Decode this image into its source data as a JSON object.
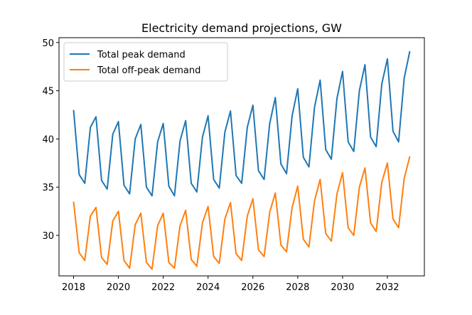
{
  "chart_data": {
    "type": "line",
    "title": "Electricity demand projections, GW",
    "xlabel": "",
    "ylabel": "",
    "xlim": [
      2017.35,
      2033.65
    ],
    "ylim": [
      25.8,
      50.5
    ],
    "xticks": [
      2018,
      2020,
      2022,
      2024,
      2026,
      2028,
      2030,
      2032
    ],
    "yticks": [
      30,
      35,
      40,
      45,
      50
    ],
    "legend_position": "upper-left",
    "x": [
      2018.0,
      2018.25,
      2018.5,
      2018.75,
      2019.0,
      2019.25,
      2019.5,
      2019.75,
      2020.0,
      2020.25,
      2020.5,
      2020.75,
      2021.0,
      2021.25,
      2021.5,
      2021.75,
      2022.0,
      2022.25,
      2022.5,
      2022.75,
      2023.0,
      2023.25,
      2023.5,
      2023.75,
      2024.0,
      2024.25,
      2024.5,
      2024.75,
      2025.0,
      2025.25,
      2025.5,
      2025.75,
      2026.0,
      2026.25,
      2026.5,
      2026.75,
      2027.0,
      2027.25,
      2027.5,
      2027.75,
      2028.0,
      2028.25,
      2028.5,
      2028.75,
      2029.0,
      2029.25,
      2029.5,
      2029.75,
      2030.0,
      2030.25,
      2030.5,
      2030.75,
      2031.0,
      2031.25,
      2031.5,
      2031.75,
      2032.0,
      2032.25,
      2032.5,
      2032.75,
      2033.0
    ],
    "series": [
      {
        "name": "Total peak demand",
        "color": "#1f77b4",
        "values": [
          43.0,
          36.3,
          35.4,
          41.2,
          42.3,
          35.7,
          34.8,
          40.5,
          41.8,
          35.2,
          34.3,
          40.0,
          41.5,
          35.0,
          34.1,
          39.7,
          41.6,
          35.1,
          34.1,
          39.8,
          41.9,
          35.4,
          34.5,
          40.2,
          42.4,
          35.8,
          34.9,
          40.7,
          42.9,
          36.2,
          35.4,
          41.2,
          43.5,
          36.7,
          35.8,
          41.6,
          44.3,
          37.4,
          36.4,
          42.4,
          45.2,
          38.1,
          37.1,
          43.3,
          46.1,
          38.9,
          37.9,
          44.2,
          47.0,
          39.7,
          38.7,
          45.0,
          47.7,
          40.2,
          39.2,
          45.7,
          48.3,
          40.8,
          39.7,
          46.3,
          49.1
        ]
      },
      {
        "name": "Total off-peak demand",
        "color": "#ff7f0e",
        "values": [
          33.5,
          28.2,
          27.4,
          32.0,
          32.9,
          27.7,
          27.0,
          31.5,
          32.5,
          27.4,
          26.6,
          31.1,
          32.3,
          27.2,
          26.5,
          31.0,
          32.3,
          27.2,
          26.6,
          31.0,
          32.6,
          27.5,
          26.8,
          31.3,
          33.0,
          27.8,
          27.1,
          31.7,
          33.4,
          28.1,
          27.4,
          32.0,
          33.8,
          28.5,
          27.8,
          32.4,
          34.4,
          29.0,
          28.3,
          32.9,
          35.1,
          29.6,
          28.8,
          33.6,
          35.8,
          30.2,
          29.4,
          34.3,
          36.5,
          30.8,
          30.0,
          35.0,
          37.0,
          31.3,
          30.4,
          35.5,
          37.5,
          31.7,
          30.8,
          35.9,
          38.2
        ]
      }
    ]
  }
}
